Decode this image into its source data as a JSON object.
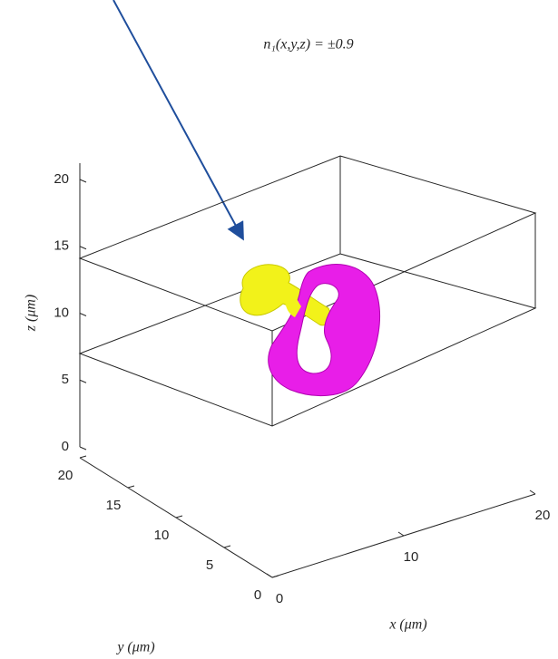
{
  "chart_data": {
    "type": "isosurface3d",
    "title": "n₁(x,y,z) = ±0.9",
    "xlabel": "x (μm)",
    "ylabel": "y (μm)",
    "zlabel": "z (μm)",
    "xlim": [
      0,
      20
    ],
    "ylim": [
      0,
      20
    ],
    "zlim": [
      0,
      20
    ],
    "xticks": [
      0,
      10,
      20
    ],
    "yticks": [
      0,
      5,
      10,
      15,
      20
    ],
    "zticks": [
      0,
      5,
      10,
      15,
      20
    ]
  }
}
